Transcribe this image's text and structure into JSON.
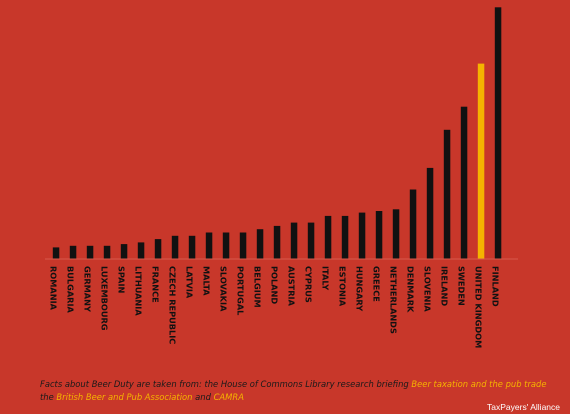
{
  "chart_data": {
    "type": "bar",
    "categories": [
      "ROMANIA",
      "BULGARIA",
      "GERMANY",
      "LUXEMBOURG",
      "SPAIN",
      "LITHUANIA",
      "FRANCE",
      "CZECH REPUBLIC",
      "LATVIA",
      "MALTA",
      "SLOVAKIA",
      "PORTUGAL",
      "BELGIUM",
      "POLAND",
      "AUSTRIA",
      "CYPRUS",
      "ITALY",
      "ESTONIA",
      "HUNGARY",
      "GREECE",
      "NETHERLANDS",
      "DENMARK",
      "SLOVENIA",
      "IRELAND",
      "SWEDEN",
      "UNITED KINGDOM",
      "FINLAND"
    ],
    "values": [
      3.5,
      4,
      4,
      4,
      4.5,
      5,
      6,
      7,
      7,
      8,
      8,
      8,
      9,
      10,
      11,
      11,
      13,
      13,
      14,
      14.5,
      15,
      21,
      27.5,
      39,
      46,
      59,
      76
    ],
    "highlight": "UNITED KINGDOM",
    "ylim": [
      0,
      77
    ],
    "colors": {
      "bar": "#111111",
      "highlight_bar": "#f5b400",
      "highlight_label": "#f5b400",
      "label": "#111111"
    },
    "grid": false
  },
  "footnote": {
    "p1": "Facts about Beer Duty are taken from: the House of Commons Library research briefing ",
    "link1": "Beer taxation and the pub trade",
    "p2": "  the ",
    "link2": "British Beer and Pub Association",
    "p3": " and ",
    "link3": "CAMRA"
  },
  "credit": "TaxPayers' Alliance"
}
